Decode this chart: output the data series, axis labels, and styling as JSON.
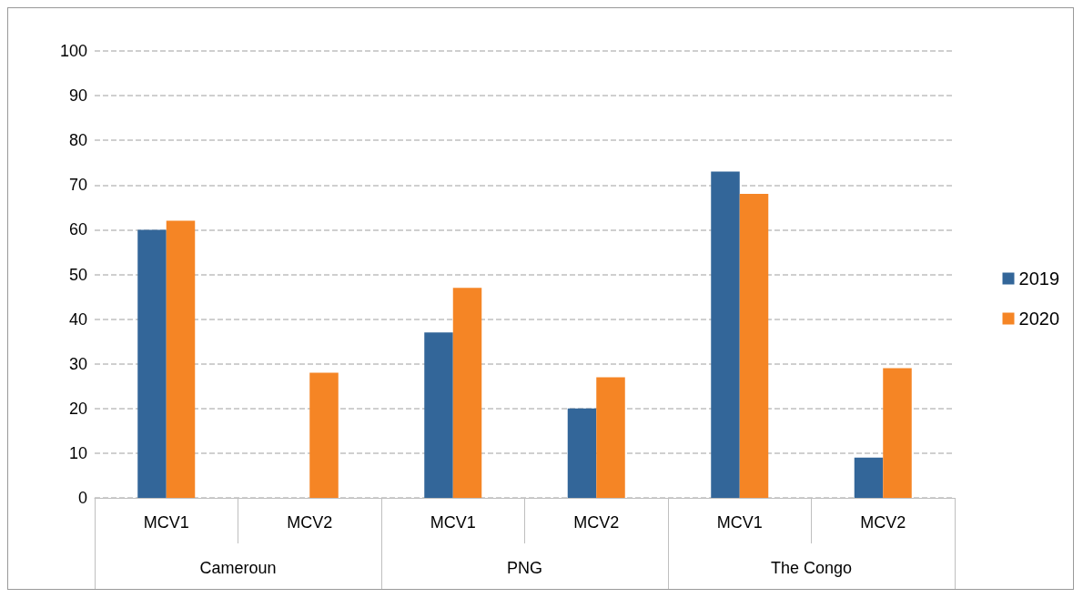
{
  "chart_data": {
    "type": "bar",
    "categories": [
      "MCV1",
      "MCV2",
      "MCV1",
      "MCV2",
      "MCV1",
      "MCV2"
    ],
    "annotations": [
      "Cameroun",
      "PNG",
      "The Congo"
    ],
    "series": [
      {
        "name": "2019",
        "color": "#336699",
        "values": [
          60,
          null,
          37,
          20,
          73,
          9
        ]
      },
      {
        "name": "2020",
        "color": "#f58525",
        "values": [
          62,
          28,
          47,
          27,
          68,
          29
        ]
      }
    ],
    "ylim": [
      0,
      100
    ],
    "yticks": [
      0,
      10,
      20,
      30,
      40,
      50,
      60,
      70,
      80,
      90,
      100
    ],
    "grid": "y",
    "legend": "right"
  }
}
